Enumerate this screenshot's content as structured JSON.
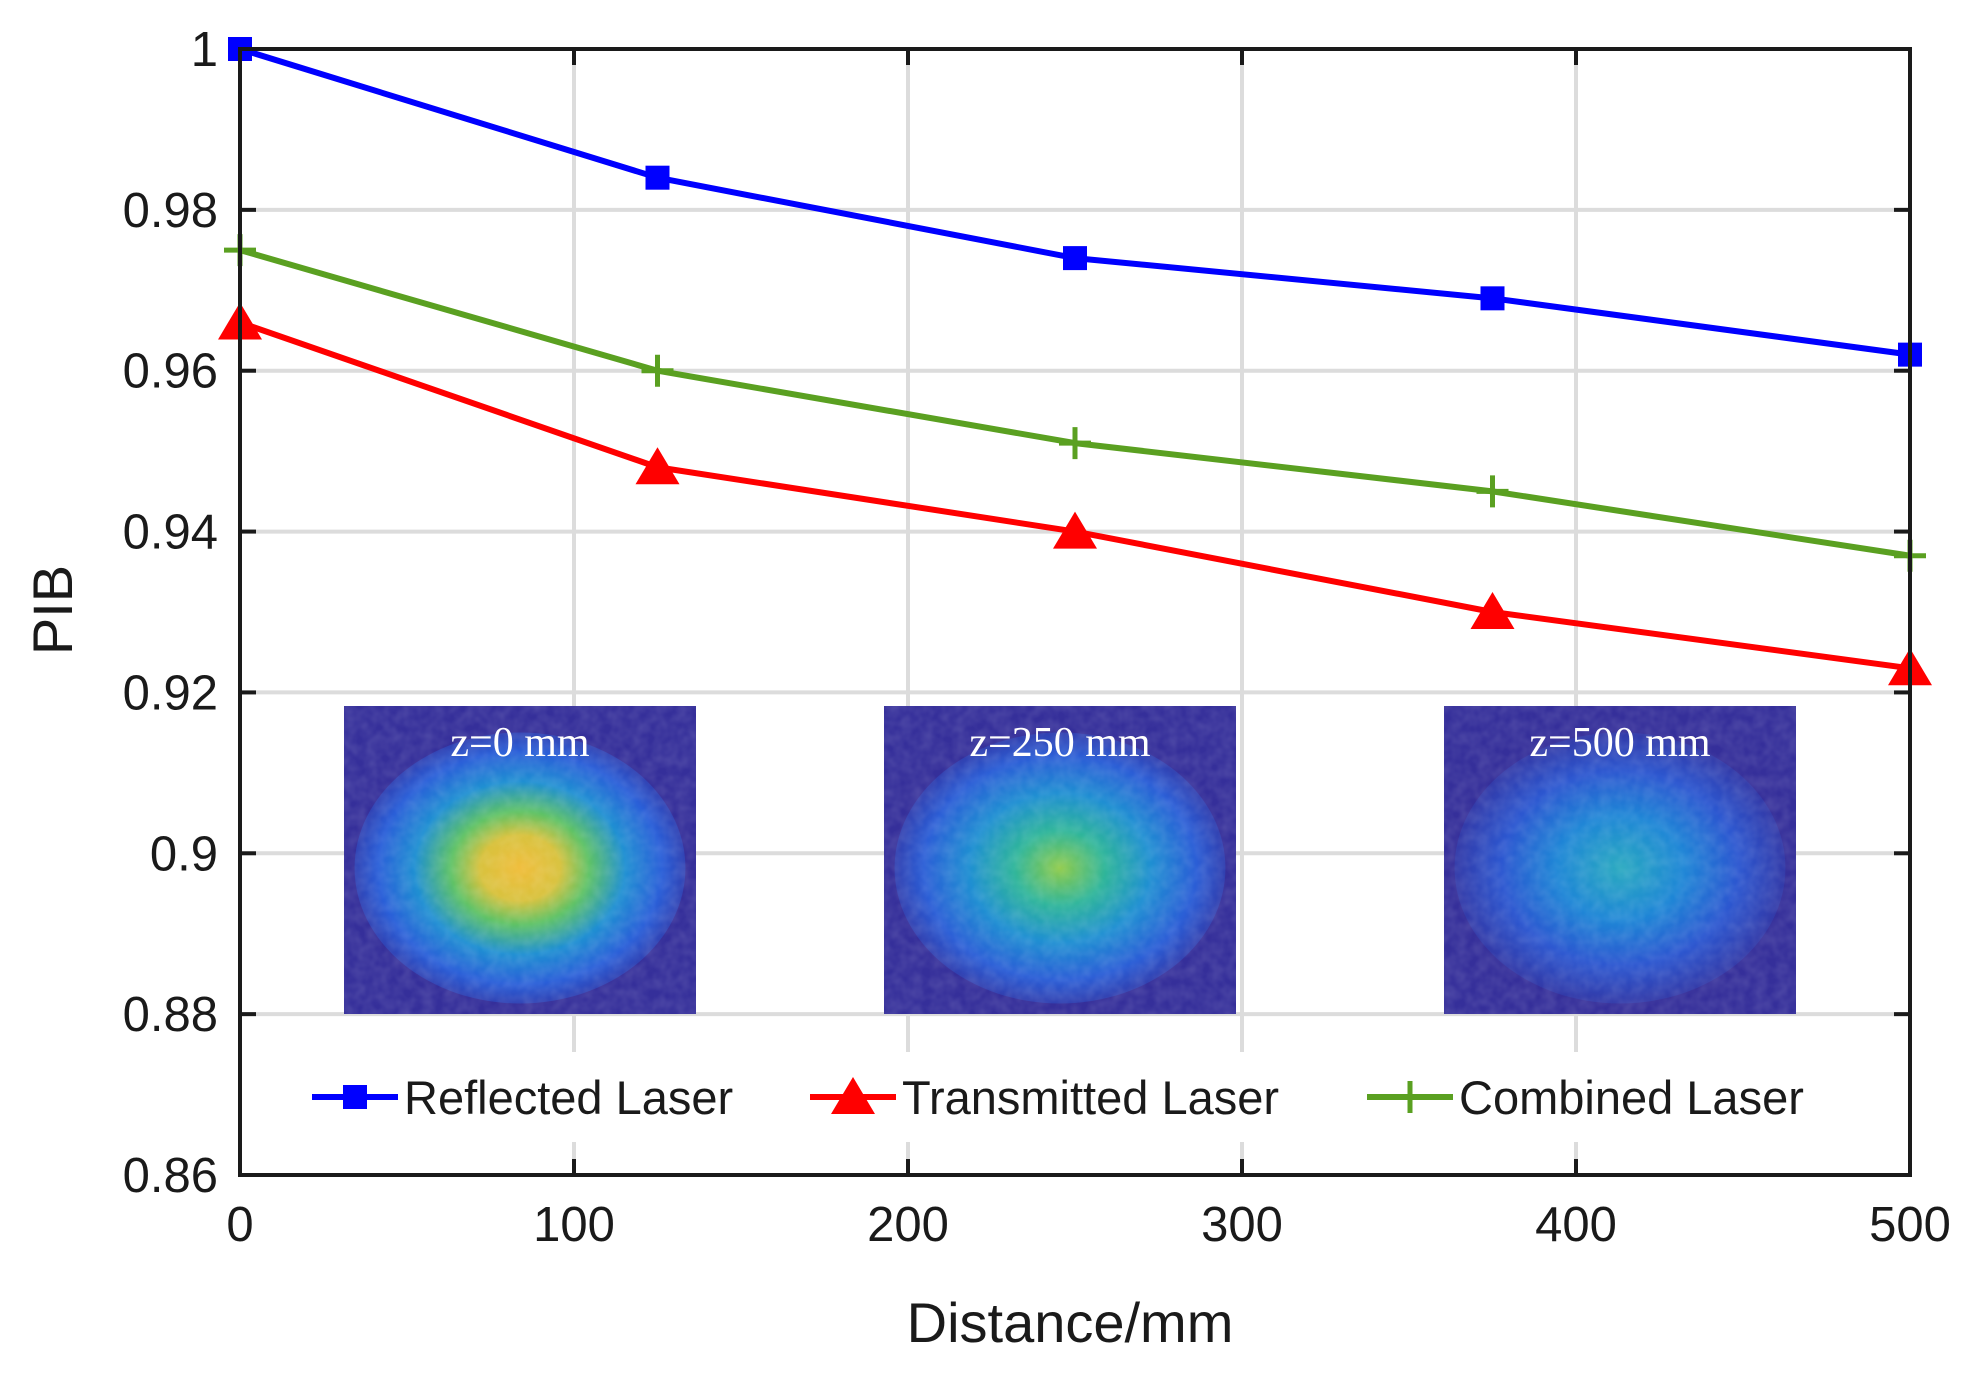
{
  "chart_data": {
    "type": "line",
    "title": "",
    "xlabel": "Distance/mm",
    "ylabel": "PIB",
    "xlim": [
      0,
      500
    ],
    "ylim": [
      0.86,
      1.0
    ],
    "x_ticks": [
      "0",
      "100",
      "200",
      "300",
      "400",
      "500"
    ],
    "y_ticks": [
      "0.86",
      "0.88",
      "0.9",
      "0.92",
      "0.94",
      "0.96",
      "0.98",
      "1"
    ],
    "grid": true,
    "legend_position": "bottom-inside",
    "x": [
      0,
      125,
      250,
      375,
      500
    ],
    "series": [
      {
        "name": "Reflected Laser",
        "values": [
          1.0,
          0.984,
          0.974,
          0.969,
          0.962
        ],
        "color": "#0000ff",
        "marker": "square"
      },
      {
        "name": "Transmitted Laser",
        "values": [
          0.966,
          0.948,
          0.94,
          0.93,
          0.923
        ],
        "color": "#ff0000",
        "marker": "triangle"
      },
      {
        "name": "Combined Laser",
        "values": [
          0.975,
          0.96,
          0.951,
          0.945,
          0.937
        ],
        "color": "#5aa021",
        "marker": "plus"
      }
    ],
    "insets": [
      {
        "label": "z=0 mm",
        "intensity": 1.0
      },
      {
        "label": "z=250 mm",
        "intensity": 0.65
      },
      {
        "label": "z=500 mm",
        "intensity": 0.4
      }
    ]
  }
}
